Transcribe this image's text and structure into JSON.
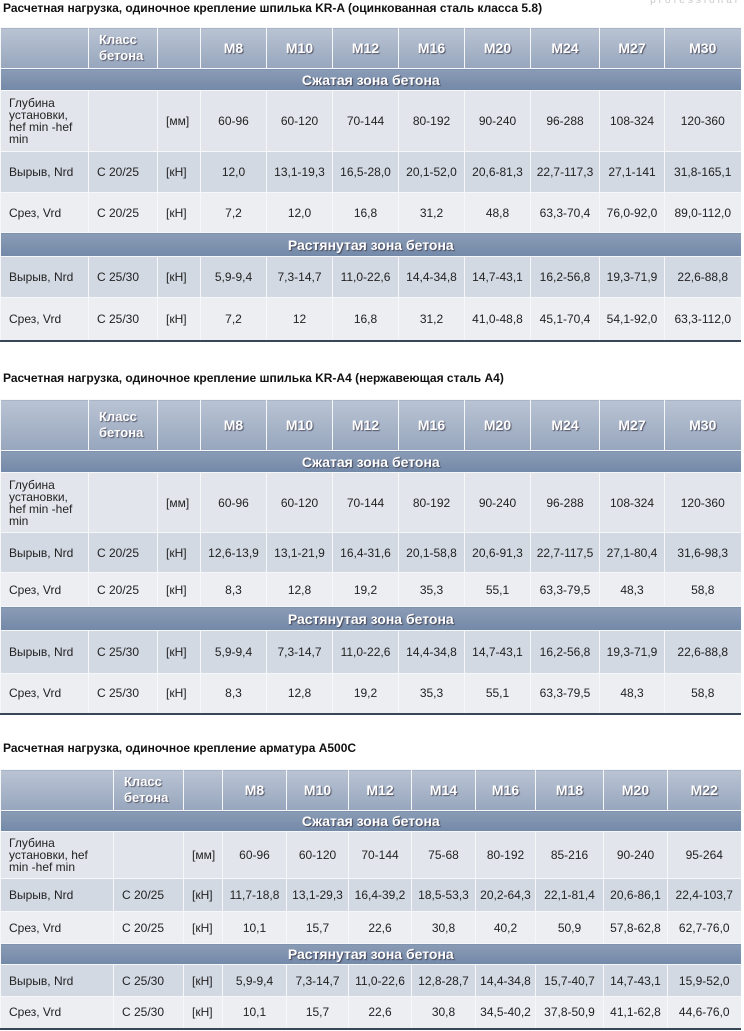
{
  "watermark": "professional",
  "tables": [
    {
      "title": "Расчетная нагрузка, одиночное крепление шпилька KR-A (оцинкованная сталь класса 5.8)",
      "header": {
        "class_label": "Класс бетона",
        "sizes": [
          "M8",
          "M10",
          "M12",
          "M16",
          "M20",
          "M24",
          "M27",
          "M30"
        ]
      },
      "sections": [
        {
          "title": "Сжатая зона бетона",
          "rows": [
            {
              "label": "Глубина установки, hef min -hef min",
              "unit": "[мм]",
              "values": [
                "60-96",
                "60-120",
                "70-144",
                "80-192",
                "90-240",
                "96-288",
                "108-324",
                "120-360"
              ]
            },
            {
              "label": "Вырыв, Nrd",
              "concrete_class": "C 20/25",
              "unit": "[кН]",
              "values": [
                "12,0",
                "13,1-19,3",
                "16,5-28,0",
                "20,1-52,0",
                "20,6-81,3",
                "22,7-117,3",
                "27,1-141",
                "31,8-165,1"
              ]
            },
            {
              "label": "Срез, Vrd",
              "concrete_class": "C 20/25",
              "unit": "[кН]",
              "values": [
                "7,2",
                "12,0",
                "16,8",
                "31,2",
                "48,8",
                "63,3-70,4",
                "76,0-92,0",
                "89,0-112,0"
              ]
            }
          ]
        },
        {
          "title": "Растянутая зона бетона",
          "rows": [
            {
              "label": "Вырыв, Nrd",
              "concrete_class": "C 25/30",
              "unit": "[кН]",
              "values": [
                "5,9-9,4",
                "7,3-14,7",
                "11,0-22,6",
                "14,4-34,8",
                "14,7-43,1",
                "16,2-56,8",
                "19,3-71,9",
                "22,6-88,8"
              ]
            },
            {
              "label": "Срез, Vrd",
              "concrete_class": "C 25/30",
              "unit": "[кН]",
              "values": [
                "7,2",
                "12",
                "16,8",
                "31,2",
                "41,0-48,8",
                "45,1-70,4",
                "54,1-92,0",
                "63,3-112,0"
              ]
            }
          ]
        }
      ]
    },
    {
      "title": "Расчетная нагрузка, одиночное крепление шпилька KR-A4 (нержавеющая сталь A4)",
      "header": {
        "class_label": "Класс бетона",
        "sizes": [
          "M8",
          "M10",
          "M12",
          "M16",
          "M20",
          "M24",
          "M27",
          "M30"
        ]
      },
      "sections": [
        {
          "title": "Сжатая зона бетона",
          "rows": [
            {
              "label": "Глубина установки, hef min -hef min",
              "unit": "[мм]",
              "values": [
                "60-96",
                "60-120",
                "70-144",
                "80-192",
                "90-240",
                "96-288",
                "108-324",
                "120-360"
              ]
            },
            {
              "label": "Вырыв, Nrd",
              "concrete_class": "C 20/25",
              "unit": "[кН]",
              "values": [
                "12,6-13,9",
                "13,1-21,9",
                "16,4-31,6",
                "20,1-58,8",
                "20,6-91,3",
                "22,7-117,5",
                "27,1-80,4",
                "31,6-98,3"
              ]
            },
            {
              "label": "Срез, Vrd",
              "concrete_class": "C 20/25",
              "unit": "[кН]",
              "values": [
                "8,3",
                "12,8",
                "19,2",
                "35,3",
                "55,1",
                "63,3-79,5",
                "48,3",
                "58,8"
              ]
            }
          ]
        },
        {
          "title": "Растянутая зона бетона",
          "rows": [
            {
              "label": "Вырыв, Nrd",
              "concrete_class": "C 25/30",
              "unit": "[кН]",
              "values": [
                "5,9-9,4",
                "7,3-14,7",
                "11,0-22,6",
                "14,4-34,8",
                "14,7-43,1",
                "16,2-56,8",
                "19,3-71,9",
                "22,6-88,8"
              ]
            },
            {
              "label": "Срез, Vrd",
              "concrete_class": "C 25/30",
              "unit": "[кН]",
              "values": [
                "8,3",
                "12,8",
                "19,2",
                "35,3",
                "55,1",
                "63,3-79,5",
                "48,3",
                "58,8"
              ]
            }
          ]
        }
      ]
    },
    {
      "title": "Расчетная нагрузка, одиночное крепление арматура A500C",
      "header": {
        "class_label": "Класс бетона",
        "sizes": [
          "M8",
          "M10",
          "M12",
          "M14",
          "M16",
          "M18",
          "M20",
          "M22"
        ]
      },
      "sections": [
        {
          "title": "Сжатая зона бетона",
          "rows": [
            {
              "label": "Глубина установки, hef min -hef min",
              "unit": "[мм]",
              "values": [
                "60-96",
                "60-120",
                "70-144",
                "75-68",
                "80-192",
                "85-216",
                "90-240",
                "95-264"
              ]
            },
            {
              "label": "Вырыв, Nrd",
              "concrete_class": "C 20/25",
              "unit": "[кН]",
              "values": [
                "11,7-18,8",
                "13,1-29,3",
                "16,4-39,2",
                "18,5-53,3",
                "20,2-64,3",
                "22,1-81,4",
                "20,6-86,1",
                "22,4-103,7"
              ]
            },
            {
              "label": "Срез, Vrd",
              "concrete_class": "C 20/25",
              "unit": "[кН]",
              "values": [
                "10,1",
                "15,7",
                "22,6",
                "30,8",
                "40,2",
                "50,9",
                "57,8-62,8",
                "62,7-76,0"
              ]
            }
          ]
        },
        {
          "title": "Растянутая зона бетона",
          "rows": [
            {
              "label": "Вырыв, Nrd",
              "concrete_class": "C 25/30",
              "unit": "[кН]",
              "values": [
                "5,9-9,4",
                "7,3-14,7",
                "11,0-22,6",
                "12,8-28,7",
                "14,4-34,8",
                "15,7-40,7",
                "14,7-43,1",
                "15,9-52,0"
              ]
            },
            {
              "label": "Срез, Vrd",
              "concrete_class": "C 25/30",
              "unit": "[кН]",
              "values": [
                "10,1",
                "15,7",
                "22,6",
                "30,8",
                "34,5-40,2",
                "37,8-50,9",
                "41,1-62,8",
                "44,6-76,0"
              ]
            }
          ]
        }
      ]
    }
  ]
}
